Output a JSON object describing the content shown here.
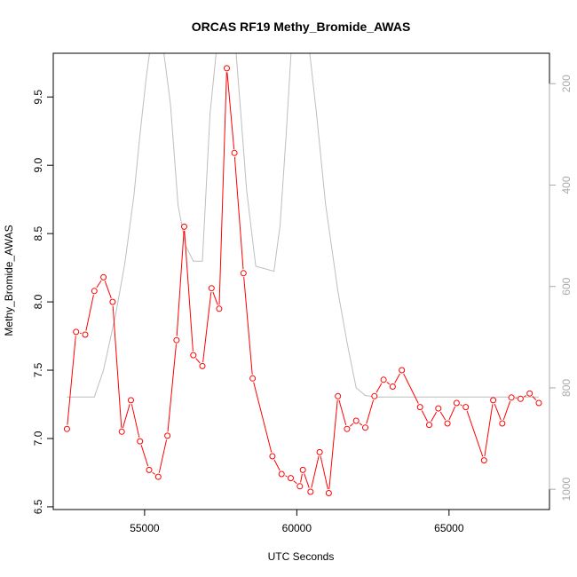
{
  "chart_data": {
    "type": "line",
    "title": "ORCAS RF19 Methy_Bromide_AWAS",
    "xlabel": "UTC Seconds",
    "ylabel": "Methy_Bromide_AWAS",
    "xlim": [
      52000,
      68300
    ],
    "ylim": [
      6.48,
      9.82
    ],
    "y2lim": [
      1040,
      140
    ],
    "x_ticks": [
      55000,
      60000,
      65000
    ],
    "x_tick_labels": [
      "55000",
      "60000",
      "65000"
    ],
    "y_ticks": [
      6.5,
      7.0,
      7.5,
      8.0,
      8.5,
      9.0,
      9.5
    ],
    "y_tick_labels": [
      "6.5",
      "7.0",
      "7.5",
      "8.0",
      "8.5",
      "9.0",
      "9.5"
    ],
    "y2_ticks": [
      200,
      400,
      600,
      800,
      1000
    ],
    "y2_tick_labels": [
      "200",
      "400",
      "600",
      "800",
      "1000"
    ],
    "grid": false,
    "colors": {
      "series": "#ff0000",
      "secondary": "#bebebe",
      "axes": "#000000",
      "right_axis": "#aaaaaa"
    },
    "series": [
      {
        "axis": "left",
        "x": [
          52450,
          52750,
          53050,
          53350,
          53650,
          53950,
          54250,
          54550,
          54850,
          55150,
          55450,
          55750,
          56050,
          56300,
          56600,
          56900,
          57200,
          57450,
          57700,
          57950,
          58250,
          58550,
          59200,
          59500,
          59800,
          60100,
          60200,
          60450,
          60750,
          61050,
          61350,
          61650,
          61950,
          62250,
          62550,
          62850,
          63150,
          63450,
          64050,
          64350,
          64650,
          64950,
          65250,
          65550,
          66150,
          66450,
          66750,
          67050,
          67350,
          67650,
          67950
        ],
        "values": [
          7.07,
          7.78,
          7.76,
          8.08,
          8.18,
          8.0,
          7.05,
          7.28,
          6.98,
          6.77,
          6.72,
          7.02,
          7.72,
          8.55,
          7.61,
          7.53,
          8.1,
          7.95,
          9.71,
          9.09,
          8.21,
          7.44,
          6.87,
          6.74,
          6.71,
          6.65,
          6.77,
          6.61,
          6.9,
          6.6,
          7.31,
          7.07,
          7.13,
          7.08,
          7.31,
          7.43,
          7.38,
          7.5,
          7.23,
          7.1,
          7.22,
          7.11,
          7.26,
          7.23,
          6.84,
          7.28,
          7.11,
          7.3,
          7.29,
          7.33,
          7.26
        ]
      },
      {
        "axis": "right",
        "x": [
          52450,
          53350,
          53650,
          54050,
          54350,
          54650,
          54850,
          55050,
          55250,
          55550,
          55850,
          56100,
          56350,
          56600,
          56900,
          57150,
          57550,
          57850,
          58150,
          58350,
          58650,
          59250,
          59450,
          59650,
          59850,
          60050,
          60350,
          60650,
          60950,
          61350,
          61650,
          61950,
          62250,
          62600,
          63050,
          64050,
          65050,
          66050,
          67050,
          67950
        ],
        "values": [
          818,
          818,
          765,
          655,
          555,
          420,
          300,
          190,
          100,
          100,
          240,
          440,
          520,
          550,
          550,
          260,
          20,
          20,
          250,
          410,
          560,
          570,
          480,
          300,
          100,
          60,
          100,
          260,
          440,
          610,
          710,
          800,
          815,
          818,
          818,
          818,
          818,
          818,
          818,
          818
        ]
      }
    ]
  }
}
